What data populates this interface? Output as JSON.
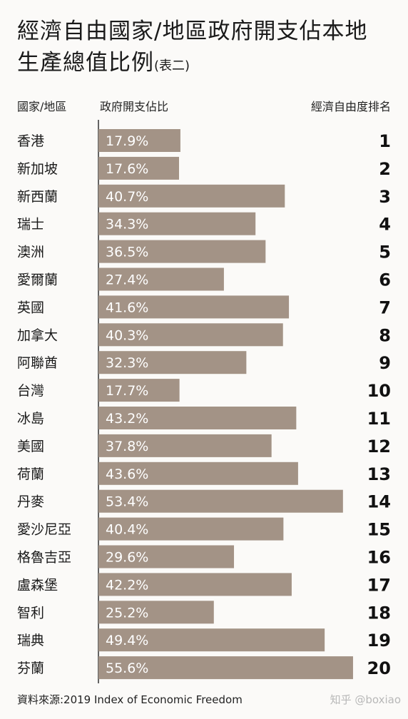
{
  "title_line1": "經濟自由國家/地區政府開支佔本地",
  "title_line2": "生產總值比例",
  "title_note": "(表二)",
  "header_country": "國家/地區",
  "header_value": "政府開支佔比",
  "header_rank": "經濟自由度排名",
  "source": "資料來源:2019 Index of Economic Freedom",
  "watermark": "知乎 @boxiao",
  "colors": {
    "bar": "#a39386",
    "bar_text": "#ffffff",
    "axis": "#333333"
  },
  "chart_data": {
    "type": "bar",
    "orientation": "horizontal",
    "categories": [
      "香港",
      "新加坡",
      "新西蘭",
      "瑞士",
      "澳洲",
      "愛爾蘭",
      "英國",
      "加拿大",
      "阿聯酋",
      "台灣",
      "冰島",
      "美國",
      "荷蘭",
      "丹麥",
      "愛沙尼亞",
      "格魯吉亞",
      "盧森堡",
      "智利",
      "瑞典",
      "芬蘭"
    ],
    "values": [
      17.9,
      17.6,
      40.7,
      34.3,
      36.5,
      27.4,
      41.6,
      40.3,
      32.3,
      17.7,
      43.2,
      37.8,
      43.6,
      53.4,
      40.4,
      29.6,
      42.2,
      25.2,
      49.4,
      55.6
    ],
    "value_labels": [
      "17.9%",
      "17.6%",
      "40.7%",
      "34.3%",
      "36.5%",
      "27.4%",
      "41.6%",
      "40.3%",
      "32.3%",
      "17.7%",
      "43.2%",
      "37.8%",
      "43.6%",
      "53.4%",
      "40.4%",
      "29.6%",
      "42.2%",
      "25.2%",
      "49.4%",
      "55.6%"
    ],
    "ranks": [
      "1",
      "2",
      "3",
      "4",
      "5",
      "6",
      "7",
      "8",
      "9",
      "10",
      "11",
      "12",
      "13",
      "14",
      "15",
      "16",
      "17",
      "18",
      "19",
      "20"
    ],
    "xlim": [
      0,
      56
    ],
    "grid": false,
    "legend": "none"
  }
}
